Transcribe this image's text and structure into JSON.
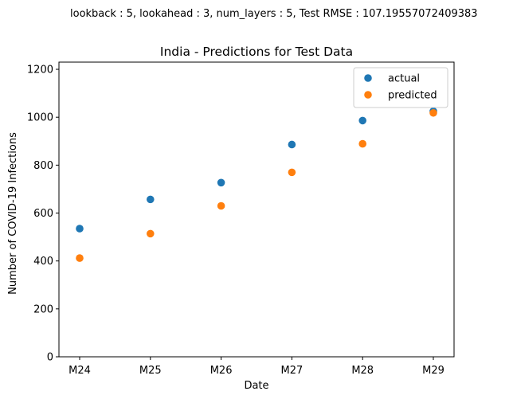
{
  "figure": {
    "suptitle": "lookback : 5, lookahead : 3, num_layers : 5, Test RMSE : 107.19557072409383"
  },
  "chart_data": {
    "type": "scatter",
    "title": "India - Predictions for Test Data",
    "xlabel": "Date",
    "ylabel": "Number of COVID-19 Infections",
    "categories": [
      "M24",
      "M25",
      "M26",
      "M27",
      "M28",
      "M29"
    ],
    "ylim": [
      0,
      1230
    ],
    "yticks": [
      0,
      200,
      400,
      600,
      800,
      1000,
      1200
    ],
    "grid": false,
    "legend_position": "top-right",
    "series": [
      {
        "name": "actual",
        "color": "#1f77b4",
        "values": [
          535,
          657,
          727,
          886,
          986,
          1025
        ]
      },
      {
        "name": "predicted",
        "color": "#ff7f0e",
        "values": [
          412,
          514,
          630,
          770,
          889,
          1018
        ]
      }
    ]
  }
}
